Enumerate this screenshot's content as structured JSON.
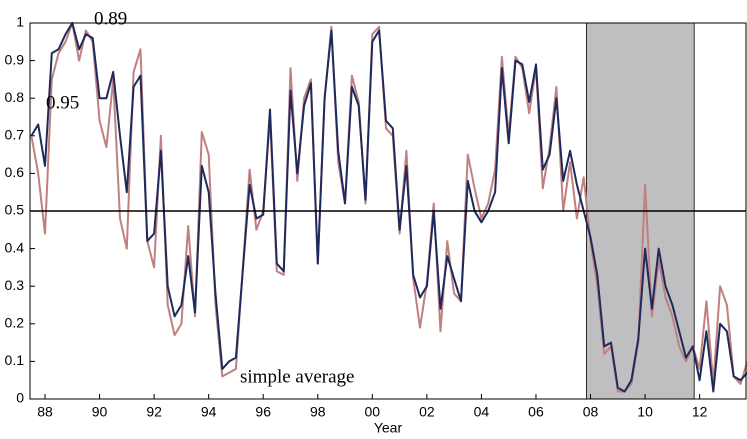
{
  "chart_data": {
    "type": "line",
    "xlabel": "Year",
    "annotations": [
      "0.89",
      "0.95",
      "simple average"
    ],
    "x": [
      1987.5,
      1987.75,
      1988,
      1988.25,
      1988.5,
      1988.75,
      1989,
      1989.25,
      1989.5,
      1989.75,
      1990,
      1990.25,
      1990.5,
      1990.75,
      1991,
      1991.25,
      1991.5,
      1991.75,
      1992,
      1992.25,
      1992.5,
      1992.75,
      1993,
      1993.25,
      1993.5,
      1993.75,
      1994,
      1994.25,
      1994.5,
      1994.75,
      1995,
      1995.5,
      1995.75,
      1996,
      1996.25,
      1996.5,
      1996.75,
      1997,
      1997.25,
      1997.5,
      1997.75,
      1998,
      1998.25,
      1998.5,
      1998.75,
      1999,
      1999.25,
      1999.5,
      1999.75,
      2000,
      2000.25,
      2000.5,
      2000.75,
      2001,
      2001.25,
      2001.5,
      2001.75,
      2002,
      2002.25,
      2002.5,
      2002.75,
      2003,
      2003.25,
      2003.5,
      2003.75,
      2004,
      2004.25,
      2004.5,
      2004.75,
      2005,
      2005.25,
      2005.5,
      2005.75,
      2006,
      2006.25,
      2006.5,
      2006.75,
      2007,
      2007.25,
      2007.5,
      2007.75,
      2008,
      2008.25,
      2008.5,
      2008.75,
      2009,
      2009.25,
      2009.5,
      2009.75,
      2010,
      2010.25,
      2010.5,
      2010.75,
      2011,
      2011.25,
      2011.5,
      2011.75,
      2012,
      2012.25,
      2012.5,
      2012.75,
      2013,
      2013.25,
      2013.5,
      2013.75
    ],
    "series": [
      {
        "color": "#c08080",
        "values": [
          0.7,
          0.6,
          0.44,
          0.85,
          0.92,
          0.95,
          1.0,
          0.9,
          0.98,
          0.95,
          0.74,
          0.67,
          0.85,
          0.48,
          0.4,
          0.87,
          0.93,
          0.42,
          0.35,
          0.7,
          0.25,
          0.17,
          0.2,
          0.46,
          0.22,
          0.71,
          0.65,
          0.25,
          0.06,
          0.07,
          0.08,
          0.61,
          0.45,
          0.5,
          0.75,
          0.34,
          0.33,
          0.88,
          0.58,
          0.8,
          0.85,
          0.36,
          0.8,
          0.99,
          0.63,
          0.52,
          0.86,
          0.79,
          0.52,
          0.97,
          0.99,
          0.72,
          0.7,
          0.44,
          0.66,
          0.32,
          0.19,
          0.31,
          0.52,
          0.18,
          0.42,
          0.28,
          0.26,
          0.65,
          0.56,
          0.48,
          0.52,
          0.61,
          0.91,
          0.7,
          0.91,
          0.88,
          0.76,
          0.88,
          0.56,
          0.67,
          0.83,
          0.5,
          0.63,
          0.48,
          0.59,
          0.42,
          0.3,
          0.12,
          0.14,
          0.02,
          0.02,
          0.04,
          0.15,
          0.57,
          0.22,
          0.37,
          0.27,
          0.22,
          0.14,
          0.1,
          0.14,
          0.08,
          0.26,
          0.04,
          0.3,
          0.25,
          0.06,
          0.04,
          0.1
        ]
      },
      {
        "color": "#1f2a5c",
        "values": [
          0.7,
          0.73,
          0.62,
          0.92,
          0.93,
          0.97,
          1.0,
          0.93,
          0.97,
          0.96,
          0.8,
          0.8,
          0.87,
          0.7,
          0.55,
          0.83,
          0.86,
          0.42,
          0.44,
          0.66,
          0.3,
          0.22,
          0.25,
          0.38,
          0.23,
          0.62,
          0.55,
          0.28,
          0.08,
          0.1,
          0.11,
          0.57,
          0.48,
          0.49,
          0.77,
          0.36,
          0.34,
          0.82,
          0.6,
          0.78,
          0.84,
          0.36,
          0.8,
          0.98,
          0.66,
          0.52,
          0.83,
          0.78,
          0.53,
          0.95,
          0.98,
          0.74,
          0.72,
          0.45,
          0.62,
          0.33,
          0.27,
          0.3,
          0.5,
          0.24,
          0.38,
          0.32,
          0.26,
          0.58,
          0.5,
          0.47,
          0.5,
          0.55,
          0.88,
          0.68,
          0.9,
          0.89,
          0.79,
          0.89,
          0.61,
          0.65,
          0.8,
          0.58,
          0.66,
          0.57,
          0.5,
          0.43,
          0.33,
          0.14,
          0.15,
          0.03,
          0.02,
          0.05,
          0.16,
          0.4,
          0.24,
          0.4,
          0.3,
          0.25,
          0.18,
          0.11,
          0.14,
          0.05,
          0.18,
          0.02,
          0.2,
          0.18,
          0.06,
          0.05,
          0.07
        ]
      }
    ],
    "xlim": [
      1987.45,
      2013.7
    ],
    "ylim": [
      0,
      1
    ],
    "xticks": [
      {
        "value": 1988,
        "label": "88"
      },
      {
        "value": 1990,
        "label": "90"
      },
      {
        "value": 1992,
        "label": "92"
      },
      {
        "value": 1994,
        "label": "94"
      },
      {
        "value": 1996,
        "label": "96"
      },
      {
        "value": 1998,
        "label": "98"
      },
      {
        "value": 2000,
        "label": "00"
      },
      {
        "value": 2002,
        "label": "02"
      },
      {
        "value": 2004,
        "label": "04"
      },
      {
        "value": 2006,
        "label": "06"
      },
      {
        "value": 2008,
        "label": "08"
      },
      {
        "value": 2010,
        "label": "10"
      },
      {
        "value": 2012,
        "label": "12"
      }
    ],
    "yticks": [
      0,
      0.1,
      0.2,
      0.3,
      0.4,
      0.5,
      0.6,
      0.7,
      0.8,
      0.9,
      1
    ],
    "shade": [
      2007.85,
      2011.8
    ],
    "shade_color": "#bfbfc1",
    "hline": 0.5
  }
}
